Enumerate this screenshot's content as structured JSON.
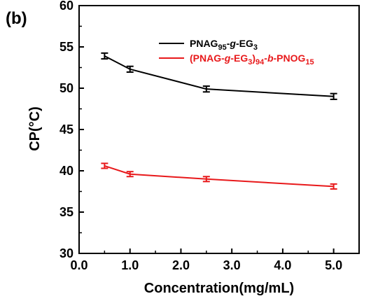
{
  "panel_label": "(b)",
  "chart_data": {
    "type": "line",
    "xlabel": "Concentration(mg/mL)",
    "ylabel": "CP(°C)",
    "xlim": [
      0.0,
      5.5
    ],
    "ylim": [
      30,
      60
    ],
    "xticks": [
      0.0,
      1.0,
      2.0,
      3.0,
      4.0,
      5.0
    ],
    "xtick_labels": [
      "0.0",
      "1.0",
      "2.0",
      "3.0",
      "4.0",
      "5.0"
    ],
    "yticks": [
      30,
      35,
      40,
      45,
      50,
      55,
      60
    ],
    "ytick_labels": [
      "30",
      "35",
      "40",
      "45",
      "50",
      "55",
      "60"
    ],
    "grid": false,
    "legend_position": "top-right",
    "series": [
      {
        "legend": {
          "base": "PNAG",
          "sub1": "95",
          "mid1": "-",
          "ital1": "g",
          "mid2": "-EG",
          "sub2": "3"
        },
        "color": "#000000",
        "x": [
          0.5,
          1.0,
          2.5,
          5.0
        ],
        "y": [
          53.9,
          52.3,
          49.9,
          49.0
        ],
        "err": [
          0.35,
          0.35,
          0.35,
          0.35
        ]
      },
      {
        "legend": {
          "base": "(PNAG-",
          "ital1": "g",
          "mid1": "-EG",
          "sub1": "3",
          "mid2": ")",
          "sub2": "94",
          "mid3": "-",
          "ital2": "b",
          "mid4": "-PNOG",
          "sub3": "15"
        },
        "color": "#e8191b",
        "x": [
          0.5,
          1.0,
          2.5,
          5.0
        ],
        "y": [
          40.6,
          39.6,
          39.0,
          38.1
        ],
        "err": [
          0.3,
          0.3,
          0.3,
          0.3
        ]
      }
    ]
  }
}
